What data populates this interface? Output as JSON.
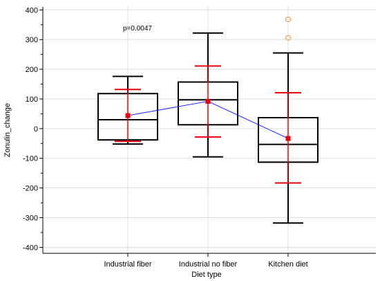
{
  "chart_data": {
    "type": "box",
    "xlabel": "Diet type",
    "ylabel": "Zonulin_change",
    "categories": [
      "Industrial fiber",
      "Industrial no fiber",
      "Kitchen diet"
    ],
    "ylim": [
      -420,
      410
    ],
    "yticks": [
      -400,
      -300,
      -200,
      -100,
      0,
      100,
      200,
      300,
      400
    ],
    "grid": true,
    "annotation": "p=0.0047",
    "boxes": [
      {
        "whisker_low": -52,
        "q1": -38,
        "median": 30,
        "q3": 118,
        "whisker_high": 176
      },
      {
        "whisker_low": -95,
        "q1": 13,
        "median": 97,
        "q3": 157,
        "whisker_high": 322
      },
      {
        "whisker_low": -318,
        "q1": -113,
        "median": -53,
        "q3": 37,
        "whisker_high": 255
      }
    ],
    "outliers": [
      {
        "category": "Kitchen diet",
        "value": 368
      },
      {
        "category": "Kitchen diet",
        "value": 306
      }
    ],
    "means": [
      44,
      92,
      -33
    ],
    "mean_ci": [
      {
        "low": -43,
        "high": 132
      },
      {
        "low": -28,
        "high": 211
      },
      {
        "low": -183,
        "high": 121
      }
    ],
    "colors": {
      "box": "#000000",
      "mean": "#e8000b",
      "mean_line": "#2222ff",
      "outlier": "#f5a05a",
      "grid": "#dddddd"
    }
  }
}
